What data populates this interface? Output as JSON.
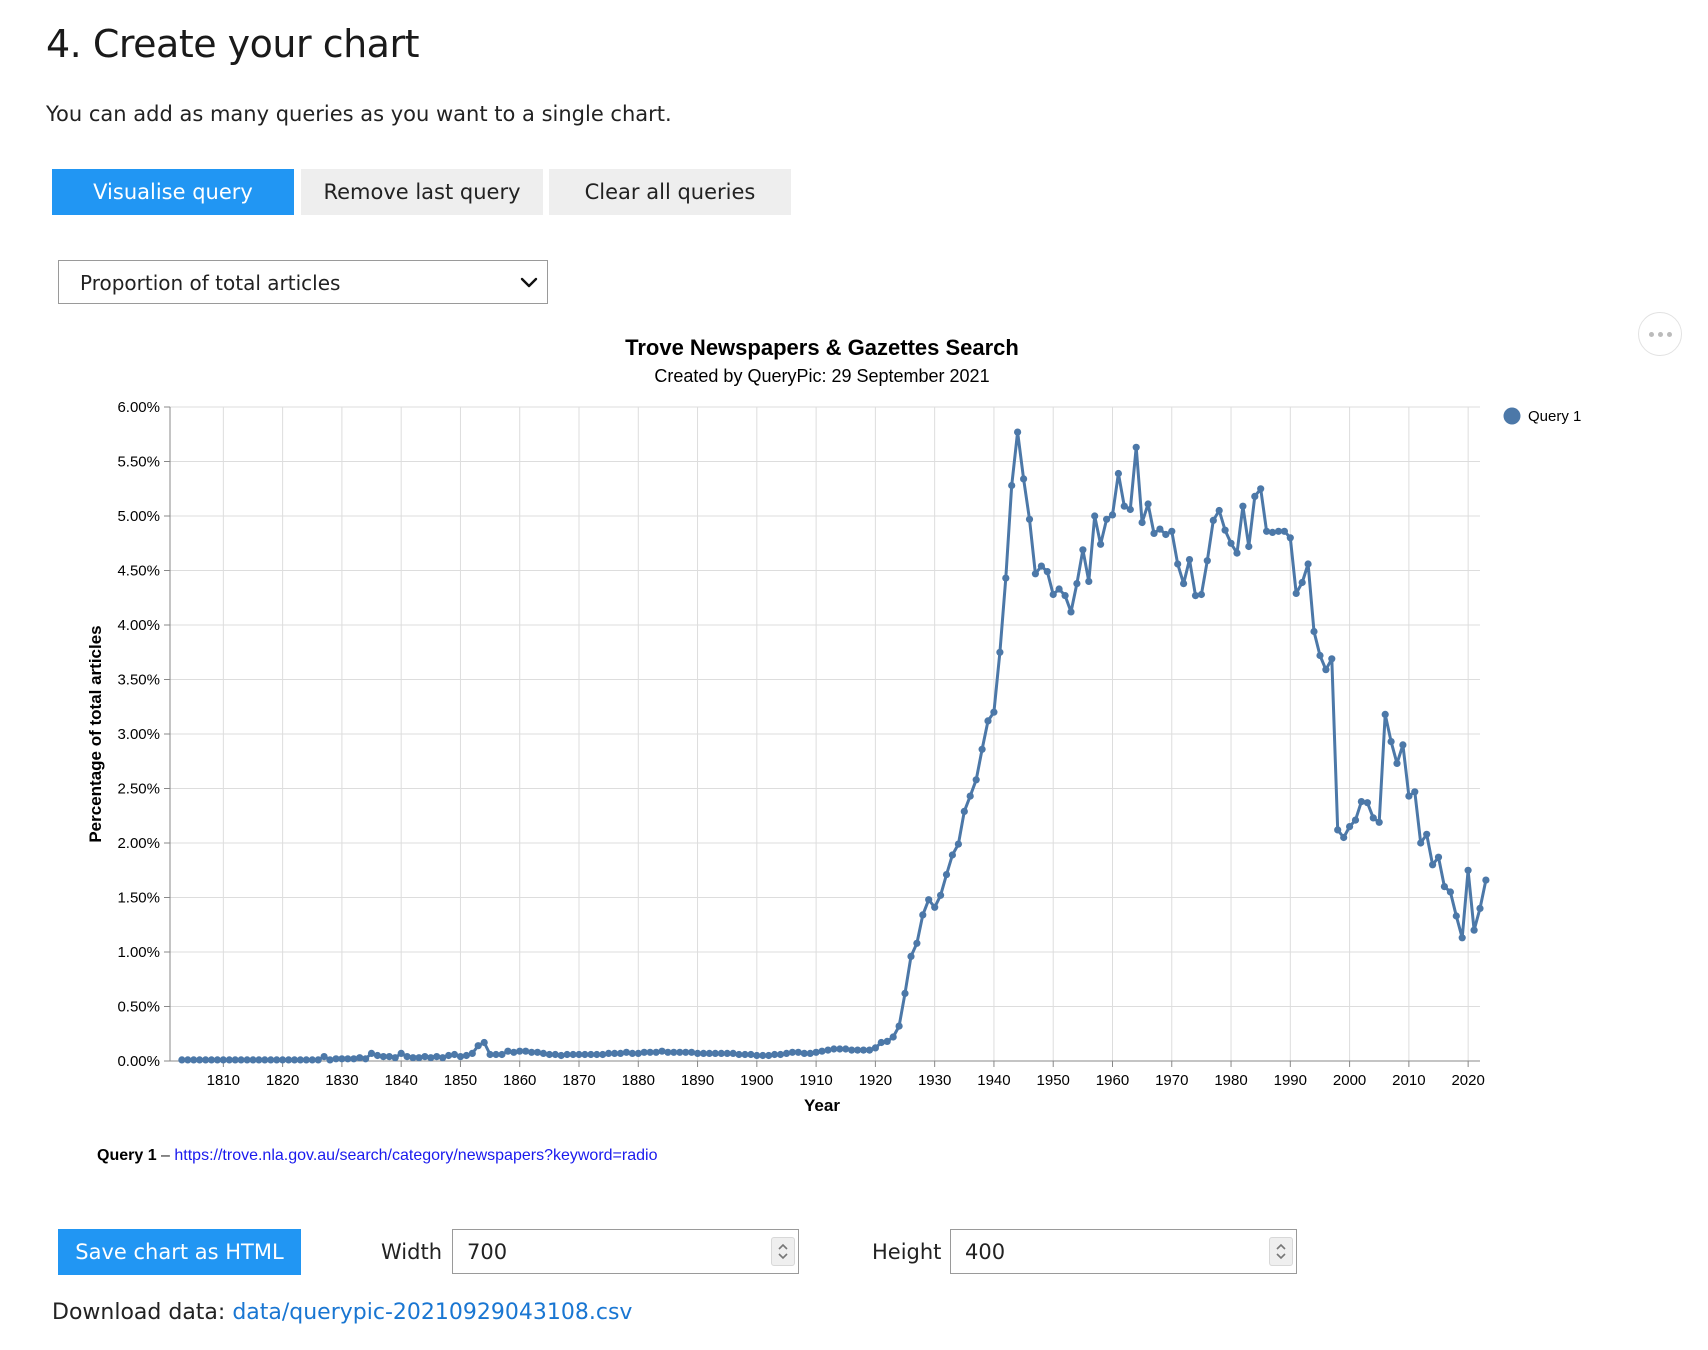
{
  "section": {
    "heading": "4. Create your chart",
    "intro": "You can add as many queries as you want to a single chart."
  },
  "buttons": {
    "visualise": "Visualise query",
    "remove_last": "Remove last query",
    "clear_all": "Clear all queries"
  },
  "measure_select": {
    "value": "Proportion of total articles"
  },
  "chart_data": {
    "type": "line",
    "title": "Trove Newspapers & Gazettes Search",
    "subtitle": "Created by QueryPic: 29 September 2021",
    "xlabel": "Year",
    "ylabel": "Percentage of total articles",
    "xlim": [
      1801,
      2022
    ],
    "ylim": [
      0,
      0.06
    ],
    "x_ticks": [
      1810,
      1820,
      1830,
      1840,
      1850,
      1860,
      1870,
      1880,
      1890,
      1900,
      1910,
      1920,
      1930,
      1940,
      1950,
      1960,
      1970,
      1980,
      1990,
      2000,
      2010,
      2020
    ],
    "x_tick_labels": [
      "1810",
      "1820",
      "1830",
      "1840",
      "1850",
      "1860",
      "1870",
      "1880",
      "1890",
      "1900",
      "1910",
      "1920",
      "1930",
      "1940",
      "1950",
      "1960",
      "1970",
      "1980",
      "1990",
      "2000",
      "2010",
      "2020"
    ],
    "y_ticks": [
      0,
      0.005,
      0.01,
      0.015,
      0.02,
      0.025,
      0.03,
      0.035,
      0.04,
      0.045,
      0.05,
      0.055,
      0.06
    ],
    "y_tick_labels": [
      "0.00%",
      "0.50%",
      "1.00%",
      "1.50%",
      "2.00%",
      "2.50%",
      "3.00%",
      "3.50%",
      "4.00%",
      "4.50%",
      "5.00%",
      "5.50%",
      "6.00%"
    ],
    "grid": true,
    "legend_position": "top-right",
    "series": [
      {
        "name": "Query 1",
        "color": "#4c78a8",
        "points": [
          [
            1803,
            0.0001
          ],
          [
            1804,
            0.0001
          ],
          [
            1805,
            0.0001
          ],
          [
            1806,
            0.0001
          ],
          [
            1807,
            0.0001
          ],
          [
            1808,
            0.0001
          ],
          [
            1809,
            0.0001
          ],
          [
            1810,
            0.0001
          ],
          [
            1811,
            0.0001
          ],
          [
            1812,
            0.0001
          ],
          [
            1813,
            0.0001
          ],
          [
            1814,
            0.0001
          ],
          [
            1815,
            0.0001
          ],
          [
            1816,
            0.0001
          ],
          [
            1817,
            0.0001
          ],
          [
            1818,
            0.0001
          ],
          [
            1819,
            0.0001
          ],
          [
            1820,
            0.0001
          ],
          [
            1821,
            0.0001
          ],
          [
            1822,
            0.0001
          ],
          [
            1823,
            0.0001
          ],
          [
            1824,
            0.0001
          ],
          [
            1825,
            0.0001
          ],
          [
            1826,
            0.0001
          ],
          [
            1827,
            0.0004
          ],
          [
            1828,
            0.0001
          ],
          [
            1829,
            0.0002
          ],
          [
            1830,
            0.0002
          ],
          [
            1831,
            0.0002
          ],
          [
            1832,
            0.0002
          ],
          [
            1833,
            0.0003
          ],
          [
            1834,
            0.0002
          ],
          [
            1835,
            0.0007
          ],
          [
            1836,
            0.0005
          ],
          [
            1837,
            0.0004
          ],
          [
            1838,
            0.0004
          ],
          [
            1839,
            0.0003
          ],
          [
            1840,
            0.0007
          ],
          [
            1841,
            0.0004
          ],
          [
            1842,
            0.0003
          ],
          [
            1843,
            0.0003
          ],
          [
            1844,
            0.0004
          ],
          [
            1845,
            0.0003
          ],
          [
            1846,
            0.0004
          ],
          [
            1847,
            0.0003
          ],
          [
            1848,
            0.0005
          ],
          [
            1849,
            0.0006
          ],
          [
            1850,
            0.0004
          ],
          [
            1851,
            0.0005
          ],
          [
            1852,
            0.0007
          ],
          [
            1853,
            0.0014
          ],
          [
            1854,
            0.0017
          ],
          [
            1855,
            0.0006
          ],
          [
            1856,
            0.0006
          ],
          [
            1857,
            0.0006
          ],
          [
            1858,
            0.0009
          ],
          [
            1859,
            0.0008
          ],
          [
            1860,
            0.0009
          ],
          [
            1861,
            0.0009
          ],
          [
            1862,
            0.0008
          ],
          [
            1863,
            0.0008
          ],
          [
            1864,
            0.0007
          ],
          [
            1865,
            0.0006
          ],
          [
            1866,
            0.0006
          ],
          [
            1867,
            0.0005
          ],
          [
            1868,
            0.0006
          ],
          [
            1869,
            0.0006
          ],
          [
            1870,
            0.0006
          ],
          [
            1871,
            0.0006
          ],
          [
            1872,
            0.0006
          ],
          [
            1873,
            0.0006
          ],
          [
            1874,
            0.0006
          ],
          [
            1875,
            0.0007
          ],
          [
            1876,
            0.0007
          ],
          [
            1877,
            0.0007
          ],
          [
            1878,
            0.0008
          ],
          [
            1879,
            0.0007
          ],
          [
            1880,
            0.0007
          ],
          [
            1881,
            0.0008
          ],
          [
            1882,
            0.0008
          ],
          [
            1883,
            0.0008
          ],
          [
            1884,
            0.0009
          ],
          [
            1885,
            0.0008
          ],
          [
            1886,
            0.0008
          ],
          [
            1887,
            0.0008
          ],
          [
            1888,
            0.0008
          ],
          [
            1889,
            0.0008
          ],
          [
            1890,
            0.0007
          ],
          [
            1891,
            0.0007
          ],
          [
            1892,
            0.0007
          ],
          [
            1893,
            0.0007
          ],
          [
            1894,
            0.0007
          ],
          [
            1895,
            0.0007
          ],
          [
            1896,
            0.0007
          ],
          [
            1897,
            0.0006
          ],
          [
            1898,
            0.0006
          ],
          [
            1899,
            0.0006
          ],
          [
            1900,
            0.0005
          ],
          [
            1901,
            0.0005
          ],
          [
            1902,
            0.0005
          ],
          [
            1903,
            0.0006
          ],
          [
            1904,
            0.0006
          ],
          [
            1905,
            0.0007
          ],
          [
            1906,
            0.0008
          ],
          [
            1907,
            0.0008
          ],
          [
            1908,
            0.0007
          ],
          [
            1909,
            0.0007
          ],
          [
            1910,
            0.0008
          ],
          [
            1911,
            0.0009
          ],
          [
            1912,
            0.001
          ],
          [
            1913,
            0.0011
          ],
          [
            1914,
            0.0011
          ],
          [
            1915,
            0.0011
          ],
          [
            1916,
            0.001
          ],
          [
            1917,
            0.001
          ],
          [
            1918,
            0.001
          ],
          [
            1919,
            0.001
          ],
          [
            1920,
            0.0012
          ],
          [
            1921,
            0.0017
          ],
          [
            1922,
            0.0018
          ],
          [
            1923,
            0.0022
          ],
          [
            1924,
            0.0032
          ],
          [
            1925,
            0.0062
          ],
          [
            1926,
            0.0096
          ],
          [
            1927,
            0.0108
          ],
          [
            1928,
            0.0134
          ],
          [
            1929,
            0.0148
          ],
          [
            1930,
            0.0141
          ],
          [
            1931,
            0.0152
          ],
          [
            1932,
            0.0171
          ],
          [
            1933,
            0.0189
          ],
          [
            1934,
            0.0199
          ],
          [
            1935,
            0.0229
          ],
          [
            1936,
            0.0243
          ],
          [
            1937,
            0.0258
          ],
          [
            1938,
            0.0286
          ],
          [
            1939,
            0.0312
          ],
          [
            1940,
            0.032
          ],
          [
            1941,
            0.0375
          ],
          [
            1942,
            0.0443
          ],
          [
            1943,
            0.0528
          ],
          [
            1944,
            0.0577
          ],
          [
            1945,
            0.0534
          ],
          [
            1946,
            0.0497
          ],
          [
            1947,
            0.0447
          ],
          [
            1948,
            0.0454
          ],
          [
            1949,
            0.0449
          ],
          [
            1950,
            0.0428
          ],
          [
            1951,
            0.0433
          ],
          [
            1952,
            0.0427
          ],
          [
            1953,
            0.0412
          ],
          [
            1954,
            0.0438
          ],
          [
            1955,
            0.0469
          ],
          [
            1956,
            0.044
          ],
          [
            1957,
            0.05
          ],
          [
            1958,
            0.0474
          ],
          [
            1959,
            0.0497
          ],
          [
            1960,
            0.0501
          ],
          [
            1961,
            0.0539
          ],
          [
            1962,
            0.0509
          ],
          [
            1963,
            0.0506
          ],
          [
            1964,
            0.0563
          ],
          [
            1965,
            0.0494
          ],
          [
            1966,
            0.0511
          ],
          [
            1967,
            0.0484
          ],
          [
            1968,
            0.0488
          ],
          [
            1969,
            0.0483
          ],
          [
            1970,
            0.0486
          ],
          [
            1971,
            0.0456
          ],
          [
            1972,
            0.0438
          ],
          [
            1973,
            0.046
          ],
          [
            1974,
            0.0427
          ],
          [
            1975,
            0.0428
          ],
          [
            1976,
            0.0459
          ],
          [
            1977,
            0.0496
          ],
          [
            1978,
            0.0505
          ],
          [
            1979,
            0.0487
          ],
          [
            1980,
            0.0475
          ],
          [
            1981,
            0.0466
          ],
          [
            1982,
            0.0509
          ],
          [
            1983,
            0.0472
          ],
          [
            1984,
            0.0518
          ],
          [
            1985,
            0.0525
          ],
          [
            1986,
            0.0486
          ],
          [
            1987,
            0.0485
          ],
          [
            1988,
            0.0486
          ],
          [
            1989,
            0.0486
          ],
          [
            1990,
            0.048
          ],
          [
            1991,
            0.0429
          ],
          [
            1992,
            0.0439
          ],
          [
            1993,
            0.0456
          ],
          [
            1994,
            0.0394
          ],
          [
            1995,
            0.0372
          ],
          [
            1996,
            0.0359
          ],
          [
            1997,
            0.0369
          ],
          [
            1998,
            0.0212
          ],
          [
            1999,
            0.0205
          ],
          [
            2000,
            0.0215
          ],
          [
            2001,
            0.0221
          ],
          [
            2002,
            0.0238
          ],
          [
            2003,
            0.0237
          ],
          [
            2004,
            0.0223
          ],
          [
            2005,
            0.0219
          ],
          [
            2006,
            0.0318
          ],
          [
            2007,
            0.0293
          ],
          [
            2008,
            0.0273
          ],
          [
            2009,
            0.029
          ],
          [
            2010,
            0.0243
          ],
          [
            2011,
            0.0247
          ],
          [
            2012,
            0.02
          ],
          [
            2013,
            0.0208
          ],
          [
            2014,
            0.018
          ],
          [
            2015,
            0.0187
          ],
          [
            2016,
            0.016
          ],
          [
            2017,
            0.0155
          ],
          [
            2018,
            0.0133
          ],
          [
            2019,
            0.0113
          ],
          [
            2020,
            0.0175
          ],
          [
            2021,
            0.012
          ],
          [
            2022,
            0.014
          ],
          [
            2023,
            0.0166
          ]
        ]
      }
    ]
  },
  "query_reference": {
    "label": "Query 1",
    "separator": " – ",
    "url": "https://trove.nla.gov.au/search/category/newspapers?keyword=radio"
  },
  "save": {
    "label": "Save chart as HTML"
  },
  "dimensions": {
    "width_label": "Width",
    "width_value": "700",
    "height_label": "Height",
    "height_value": "400"
  },
  "download": {
    "label": "Download data: ",
    "link_text": "data/querypic-20210929043108.csv"
  }
}
